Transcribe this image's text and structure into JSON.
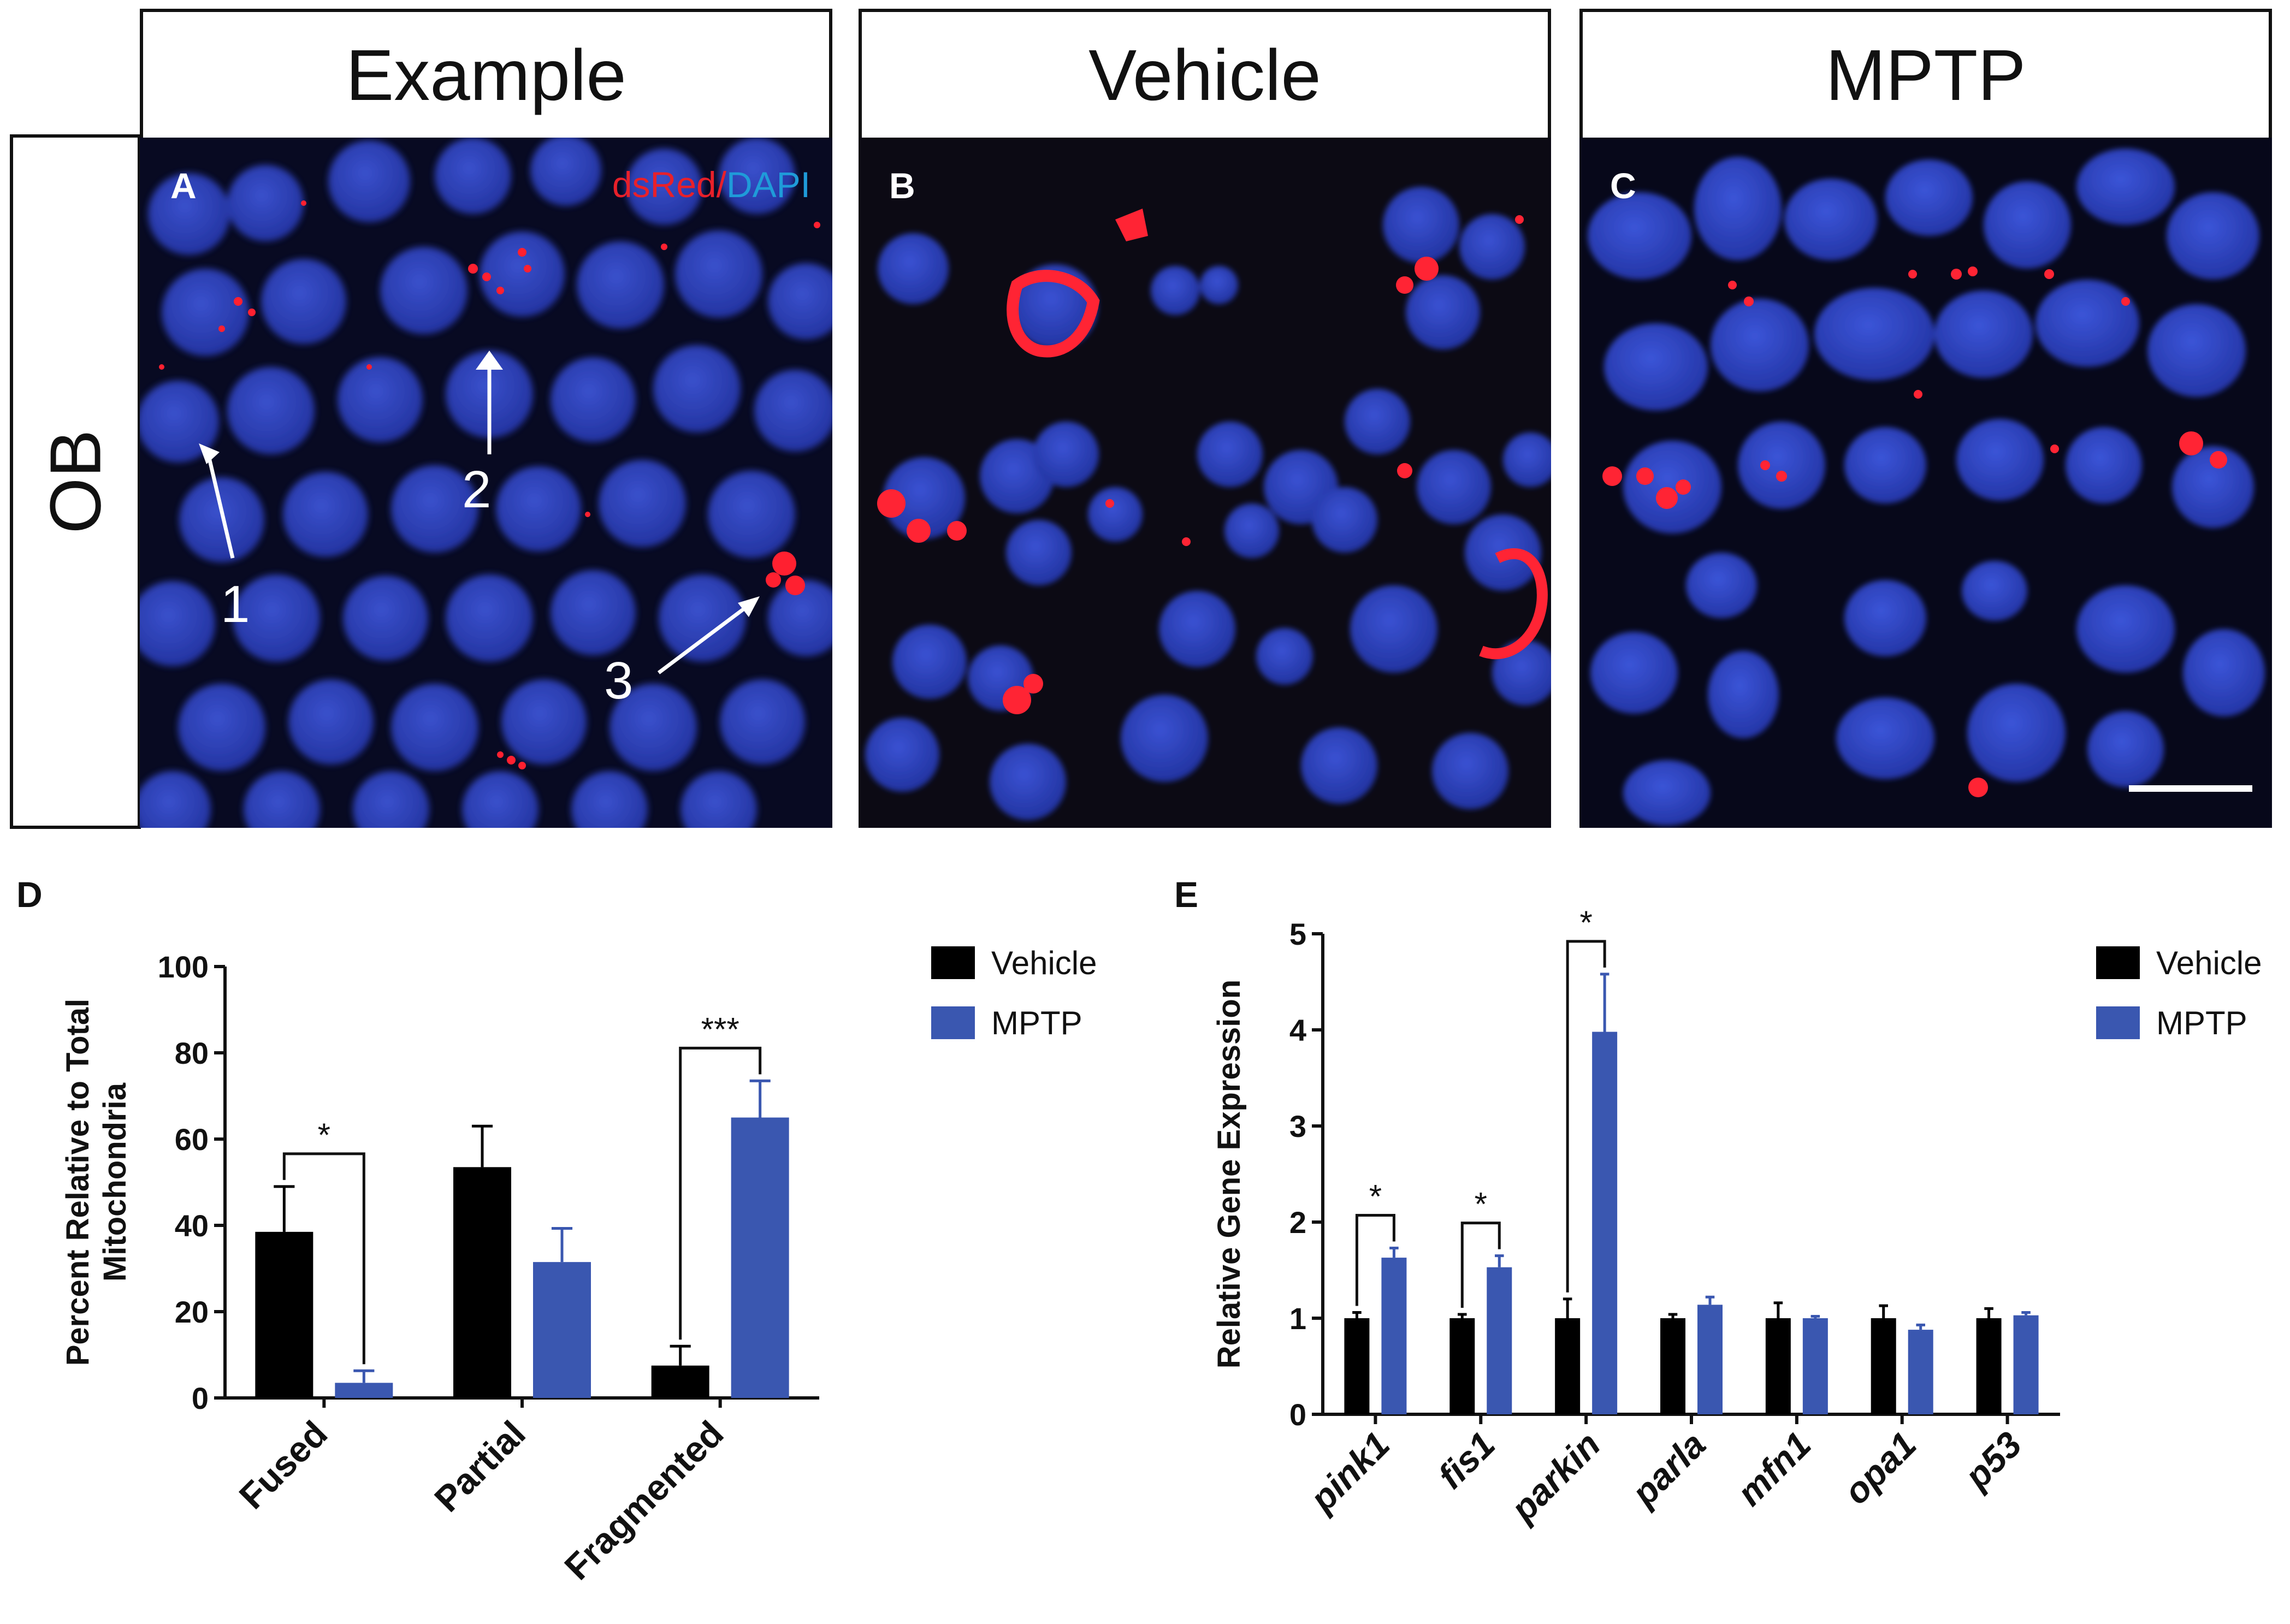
{
  "headers": {
    "col1": "Example",
    "col2": "Vehicle",
    "col3": "MPTP",
    "row": "OB"
  },
  "panels": {
    "a": {
      "label": "A",
      "stain_red": "dsRed",
      "stain_sep": "/",
      "stain_blue": "DAPI",
      "arrows": [
        "1",
        "2",
        "3"
      ]
    },
    "b": {
      "label": "B"
    },
    "c": {
      "label": "C"
    }
  },
  "colors": {
    "red_stain": "#e8202a",
    "blue_stain": "#1f9bd9",
    "nuclei": "#3348c9",
    "background": "#06081a",
    "vehicle": "#000000",
    "mptp": "#3a57b0"
  },
  "chart_d": {
    "label": "D",
    "chart_data": {
      "type": "bar",
      "categories": [
        "Fused",
        "Partial",
        "Fragmented"
      ],
      "series": [
        {
          "name": "Vehicle",
          "values": [
            38.5,
            53.5,
            7.5
          ],
          "errors": [
            10.5,
            9.5,
            4.5
          ]
        },
        {
          "name": "MPTP",
          "values": [
            3.5,
            31.5,
            65
          ],
          "errors": [
            2.8,
            7.8,
            8.5
          ]
        }
      ],
      "ylabel_line1": "Percent Relative to Total",
      "ylabel_line2": "Mitochondria",
      "ylim": [
        0,
        100
      ],
      "yticks": [
        "0",
        "20",
        "40",
        "60",
        "80",
        "100"
      ],
      "significance": [
        {
          "category": "Fused",
          "label": "*"
        },
        {
          "category": "Fragmented",
          "label": "***"
        }
      ],
      "legend": "top-right"
    }
  },
  "chart_e": {
    "label": "E",
    "chart_data": {
      "type": "bar",
      "categories": [
        "pink1",
        "fis1",
        "parkin",
        "parla",
        "mfn1",
        "opa1",
        "p53"
      ],
      "series": [
        {
          "name": "Vehicle",
          "values": [
            1.0,
            1.0,
            1.0,
            1.0,
            1.0,
            1.0,
            1.0
          ],
          "errors": [
            0.06,
            0.04,
            0.2,
            0.04,
            0.16,
            0.13,
            0.1
          ]
        },
        {
          "name": "MPTP",
          "values": [
            1.63,
            1.53,
            3.98,
            1.14,
            1.0,
            0.88,
            1.03
          ],
          "errors": [
            0.1,
            0.12,
            0.6,
            0.08,
            0.02,
            0.05,
            0.03
          ]
        }
      ],
      "ylabel": "Relative Gene Expression",
      "ylim": [
        0,
        5
      ],
      "yticks": [
        "0",
        "1",
        "2",
        "3",
        "4",
        "5"
      ],
      "significance": [
        {
          "category": "pink1",
          "label": "*"
        },
        {
          "category": "fis1",
          "label": "*"
        },
        {
          "category": "parkin",
          "label": "*"
        }
      ],
      "legend": "top-right"
    }
  }
}
